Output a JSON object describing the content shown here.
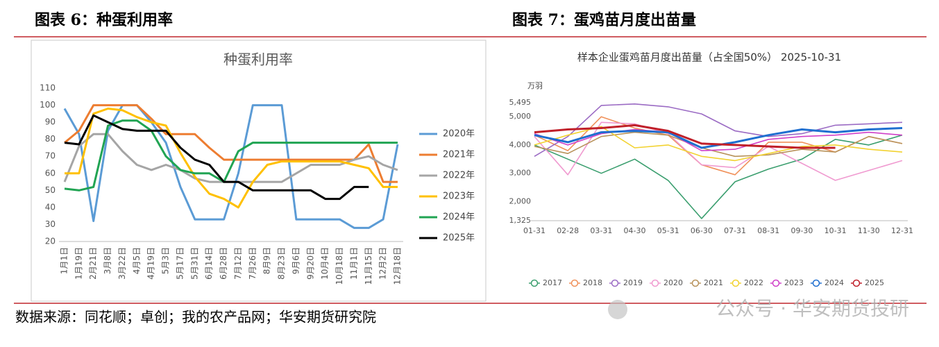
{
  "header_left": "图表 6：种蛋利用率",
  "header_right": "图表 7：蛋鸡苗月度出苗量",
  "source": "数据来源：同花顺；卓创；我的农产品网；华安期货研究院",
  "watermark": "公众号 · 华安期货投研",
  "chart_data": [
    {
      "type": "line",
      "title": "种蛋利用率",
      "categories": [
        "1月1日",
        "1月19日",
        "2月21日",
        "3月8日",
        "3月22日",
        "4月5日",
        "4月19日",
        "5月3日",
        "5月17日",
        "5月31日",
        "6月14日",
        "6月28日",
        "7月12日",
        "7月26日",
        "8月9日",
        "8月23日",
        "9月6日",
        "9月20日",
        "10月4日",
        "10月18日",
        "11月1日",
        "11月15日",
        "12月2日",
        "12月18日"
      ],
      "ylim": [
        20,
        110
      ],
      "yticks": [
        20,
        30,
        40,
        50,
        60,
        70,
        80,
        90,
        100,
        110
      ],
      "grid": false,
      "legend": "right",
      "series": [
        {
          "name": "2020年",
          "color": "#5b9bd5",
          "values": [
            98,
            83,
            32,
            85,
            100,
            100,
            90,
            78,
            52,
            33,
            33,
            33,
            60,
            100,
            100,
            100,
            33,
            33,
            33,
            33,
            28,
            28,
            33,
            77
          ]
        },
        {
          "name": "2021年",
          "color": "#ed7d31",
          "values": [
            78,
            85,
            100,
            100,
            100,
            100,
            92,
            83,
            83,
            83,
            75,
            68,
            68,
            68,
            68,
            68,
            68,
            68,
            68,
            68,
            68,
            77,
            55,
            55
          ]
        },
        {
          "name": "2022年",
          "color": "#a5a5a5",
          "values": [
            55,
            76,
            83,
            83,
            73,
            65,
            62,
            65,
            62,
            57,
            55,
            55,
            55,
            55,
            55,
            55,
            60,
            65,
            65,
            65,
            68,
            70,
            65,
            62
          ]
        },
        {
          "name": "2023年",
          "color": "#ffc000",
          "values": [
            60,
            60,
            95,
            98,
            97,
            93,
            90,
            88,
            72,
            58,
            48,
            45,
            40,
            55,
            65,
            67,
            67,
            67,
            67,
            67,
            65,
            63,
            52,
            52
          ]
        },
        {
          "name": "2024年",
          "color": "#21a453",
          "values": [
            51,
            50,
            52,
            88,
            91,
            91,
            85,
            70,
            62,
            60,
            60,
            55,
            73,
            78,
            78,
            78,
            78,
            78,
            78,
            78,
            78,
            78,
            78,
            78
          ]
        },
        {
          "name": "2025年",
          "color": "#000000",
          "values": [
            78,
            77,
            94,
            90,
            86,
            85,
            85,
            85,
            75,
            68,
            65,
            55,
            55,
            50,
            50,
            50,
            50,
            50,
            45,
            45,
            52,
            52,
            null,
            null
          ]
        }
      ]
    },
    {
      "type": "line",
      "title": "样本企业蛋鸡苗月度出苗量（占全国50%） 2025-10-31",
      "y_label": "万羽",
      "categories": [
        "01-31",
        "02-28",
        "03-31",
        "04-30",
        "05-31",
        "06-30",
        "07-31",
        "08-31",
        "09-30",
        "10-31",
        "11-30",
        "12-31"
      ],
      "ylim": [
        1325,
        5495
      ],
      "yticks": [
        {
          "value": 1325,
          "label": "1,325"
        },
        {
          "value": 2000,
          "label": "2,000"
        },
        {
          "value": 3000,
          "label": "3,000"
        },
        {
          "value": 4000,
          "label": "4,000"
        },
        {
          "value": 5000,
          "label": "5,000"
        },
        {
          "value": 5495,
          "label": "5,495"
        }
      ],
      "grid": false,
      "legend": "bottom",
      "series": [
        {
          "name": "2017",
          "color": "#3a9e6e",
          "values": [
            4000,
            3500,
            3000,
            3500,
            2750,
            1400,
            2700,
            3150,
            3500,
            4200,
            4000,
            4350
          ]
        },
        {
          "name": "2018",
          "color": "#f0915a",
          "values": [
            4350,
            3800,
            5000,
            4600,
            4350,
            3300,
            2950,
            4100,
            4100,
            3750,
            4300,
            4050
          ]
        },
        {
          "name": "2019",
          "color": "#9b6bc4",
          "values": [
            3600,
            4300,
            5400,
            5450,
            5350,
            5100,
            4500,
            4300,
            4400,
            4700,
            4750,
            4800
          ]
        },
        {
          "name": "2020",
          "color": "#f09ad0",
          "values": [
            4300,
            2950,
            4800,
            4750,
            4400,
            3300,
            3200,
            3950,
            3350,
            2750,
            3100,
            3450
          ]
        },
        {
          "name": "2021",
          "color": "#b8925a",
          "values": [
            3950,
            3700,
            4300,
            4450,
            4350,
            3900,
            3600,
            3650,
            3850,
            3750,
            4300,
            4050
          ]
        },
        {
          "name": "2022",
          "color": "#f2d230",
          "values": [
            4000,
            4350,
            4650,
            3900,
            4000,
            3600,
            3450,
            3700,
            3950,
            4000,
            3850,
            3750
          ]
        },
        {
          "name": "2023",
          "color": "#d040c8",
          "values": [
            4400,
            4000,
            4400,
            4550,
            4450,
            3800,
            3850,
            4200,
            4300,
            4350,
            4450,
            4350
          ]
        },
        {
          "name": "2024",
          "color": "#1f6fd0",
          "values": [
            4350,
            4100,
            4450,
            4500,
            4450,
            3900,
            4100,
            4350,
            4550,
            4450,
            4550,
            4600
          ]
        },
        {
          "name": "2025",
          "color": "#c0202a",
          "values": [
            4450,
            4550,
            4600,
            4700,
            4500,
            4050,
            4000,
            3950,
            3900,
            3900,
            null,
            null
          ]
        }
      ]
    }
  ]
}
